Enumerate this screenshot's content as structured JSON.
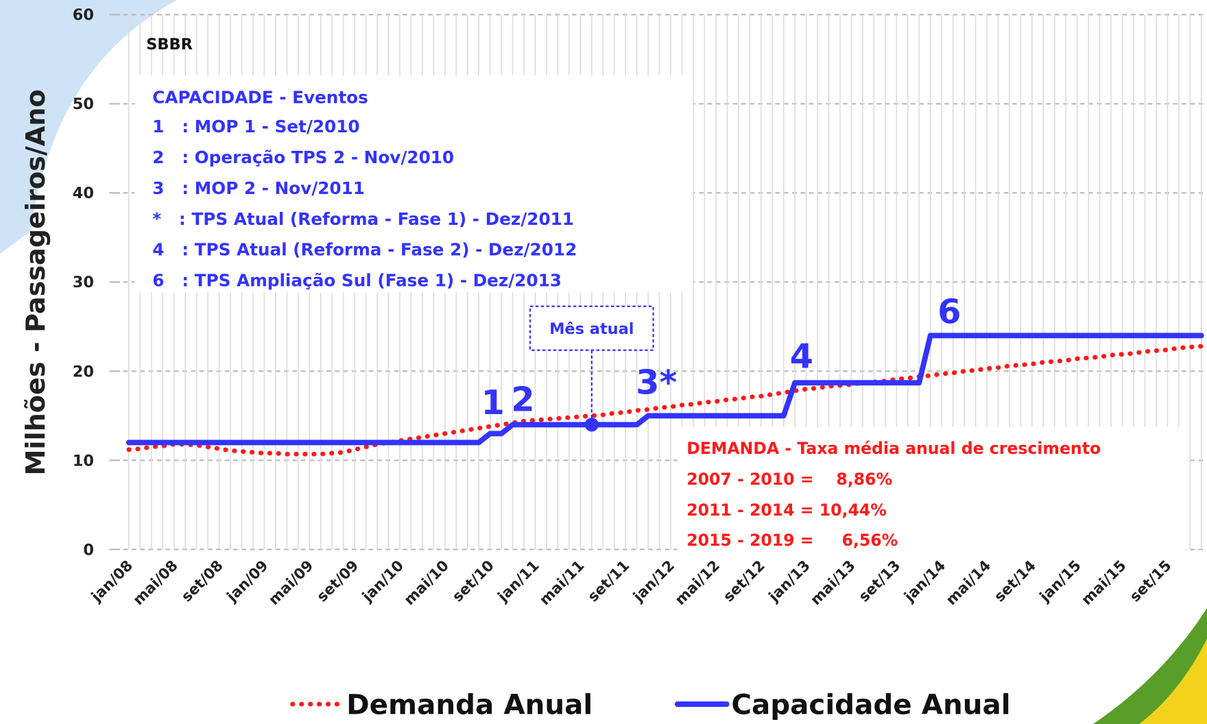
{
  "chart_data": {
    "type": "line",
    "subtitle": "SBBR",
    "y_label": "Milhões - Passageiros/Ano",
    "categories": [
      "jan/08",
      null,
      null,
      null,
      "mai/08",
      null,
      null,
      null,
      "set/08",
      null,
      null,
      null,
      "jan/09",
      null,
      null,
      null,
      "mai/09",
      null,
      null,
      null,
      "set/09",
      null,
      null,
      null,
      "jan/10",
      null,
      null,
      null,
      "mai/10",
      null,
      null,
      null,
      "set/10",
      null,
      null,
      null,
      "jan/11",
      null,
      null,
      null,
      "mai/11",
      null,
      null,
      null,
      "set/11",
      null,
      null,
      null,
      "jan/12",
      null,
      null,
      null,
      "mai/12",
      null,
      null,
      null,
      "set/12",
      null,
      null,
      null,
      "jan/13",
      null,
      null,
      null,
      "mai/13",
      null,
      null,
      null,
      "set/13",
      null,
      null,
      null,
      "jan/14",
      null,
      null,
      null,
      "mai/14",
      null,
      null,
      null,
      "set/14",
      null,
      null,
      null,
      "jan/15",
      null,
      null,
      null,
      "mai/15",
      null,
      null,
      null,
      "set/15",
      null,
      null,
      null
    ],
    "series": [
      {
        "name": "Demanda Anual",
        "color": "#ff1a1a",
        "style": "dotted",
        "values": [
          11.2,
          11.3,
          11.5,
          11.6,
          11.8,
          11.8,
          11.7,
          11.5,
          11.3,
          11.1,
          11.0,
          10.9,
          10.8,
          10.8,
          10.7,
          10.7,
          10.7,
          10.7,
          10.8,
          10.9,
          11.2,
          11.5,
          11.8,
          12.0,
          12.2,
          12.4,
          12.6,
          12.8,
          13.0,
          13.2,
          13.4,
          13.6,
          13.8,
          14.0,
          14.2,
          14.4,
          14.5,
          14.6,
          14.7,
          14.8,
          14.9,
          15.0,
          15.1,
          15.3,
          15.4,
          15.6,
          15.7,
          15.9,
          16.0,
          16.2,
          16.3,
          16.5,
          16.6,
          16.8,
          16.9,
          17.1,
          17.2,
          17.4,
          17.6,
          17.8,
          18.0,
          18.1,
          18.3,
          18.4,
          18.5,
          18.7,
          18.8,
          18.9,
          19.1,
          19.2,
          19.4,
          19.5,
          19.7,
          19.8,
          20.0,
          20.1,
          20.3,
          20.4,
          20.6,
          20.7,
          20.8,
          21.0,
          21.1,
          21.2,
          21.4,
          21.5,
          21.6,
          21.8,
          21.9,
          22.0,
          22.2,
          22.3,
          22.4,
          22.6,
          22.7,
          22.8
        ]
      },
      {
        "name": "Capacidade Anual",
        "color": "#3333ff",
        "style": "solid",
        "values": [
          12.0,
          12.0,
          12.0,
          12.0,
          12.0,
          12.0,
          12.0,
          12.0,
          12.0,
          12.0,
          12.0,
          12.0,
          12.0,
          12.0,
          12.0,
          12.0,
          12.0,
          12.0,
          12.0,
          12.0,
          12.0,
          12.0,
          12.0,
          12.0,
          12.0,
          12.0,
          12.0,
          12.0,
          12.0,
          12.0,
          12.0,
          12.0,
          13.0,
          13.0,
          14.0,
          14.0,
          14.0,
          14.0,
          14.0,
          14.0,
          14.0,
          14.0,
          14.0,
          14.0,
          14.0,
          14.0,
          15.0,
          15.0,
          15.0,
          15.0,
          15.0,
          15.0,
          15.0,
          15.0,
          15.0,
          15.0,
          15.0,
          15.0,
          15.0,
          18.7,
          18.7,
          18.7,
          18.7,
          18.7,
          18.7,
          18.7,
          18.7,
          18.7,
          18.7,
          18.7,
          18.7,
          24.0,
          24.0,
          24.0,
          24.0,
          24.0,
          24.0,
          24.0,
          24.0,
          24.0,
          24.0,
          24.0,
          24.0,
          24.0,
          24.0,
          24.0,
          24.0,
          24.0,
          24.0,
          24.0,
          24.0,
          24.0,
          24.0,
          24.0,
          24.0,
          24.0
        ]
      }
    ],
    "ylim": [
      0,
      60
    ],
    "yticks": [
      0,
      10,
      20,
      30,
      40,
      50,
      60
    ],
    "grid": true,
    "events_box": [
      "CAPACIDADE - Eventos",
      "1   : MOP 1 - Set/2010",
      "2   : Operação TPS 2 - Nov/2010",
      "3   : MOP 2 - Nov/2011",
      "*   : TPS Atual (Reforma - Fase 1) - Dez/2011",
      "4   : TPS Atual (Reforma - Fase 2) - Dez/2012",
      "6   : TPS Ampliação Sul (Fase 1) - Dez/2013"
    ],
    "demand_box": [
      "DEMANDA - Taxa média anual de crescimento",
      "2007 - 2010 =    8,86%",
      "2011 - 2014 = 10,44%",
      "2015 - 2019 =     6,56%"
    ],
    "step_labels": [
      "1",
      "2",
      "3*",
      "4",
      "6"
    ],
    "current_month_label": "Mês atual"
  }
}
